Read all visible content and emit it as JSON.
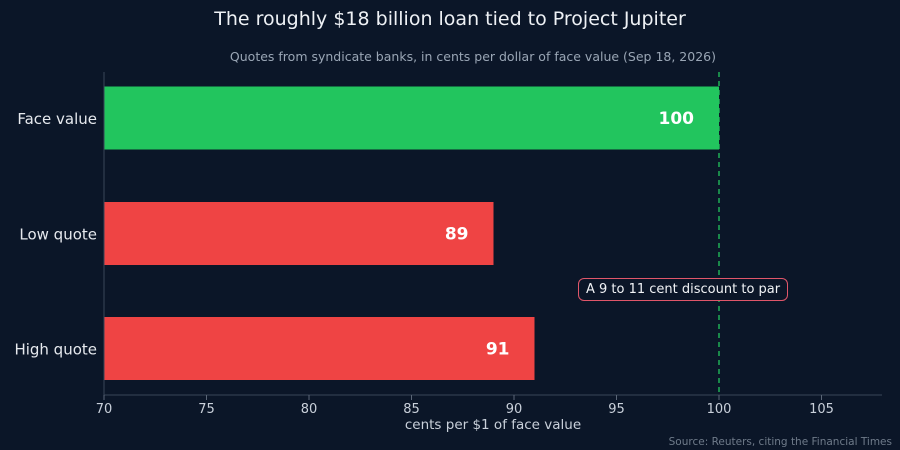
{
  "chart_data": {
    "type": "bar",
    "orientation": "horizontal",
    "title": "The roughly $18 billion loan tied to Project Jupiter",
    "subtitle": "Quotes from syndicate banks, in cents per dollar of face value (Sep 18, 2026)",
    "categories": [
      "Face value",
      "Low quote",
      "High quote"
    ],
    "values": [
      100,
      89,
      91
    ],
    "bar_colors": [
      "#22c55e",
      "#ef4444",
      "#ef4444"
    ],
    "data_labels": [
      "100",
      "89",
      "91"
    ],
    "xlabel": "cents per $1 of face value",
    "ylabel": "",
    "xlim": [
      70,
      108
    ],
    "xticks": [
      70,
      75,
      80,
      85,
      90,
      95,
      100,
      105
    ],
    "reference_line": {
      "value": 100,
      "style": "dashed",
      "color": "#22c55e"
    },
    "annotation": "A 9 to 11 cent discount to par",
    "annotation_border_color": "#e0566a",
    "source": "Source: Reuters, citing the Financial Times",
    "grid": false,
    "legend": "none",
    "background_color": "#0b1628"
  }
}
